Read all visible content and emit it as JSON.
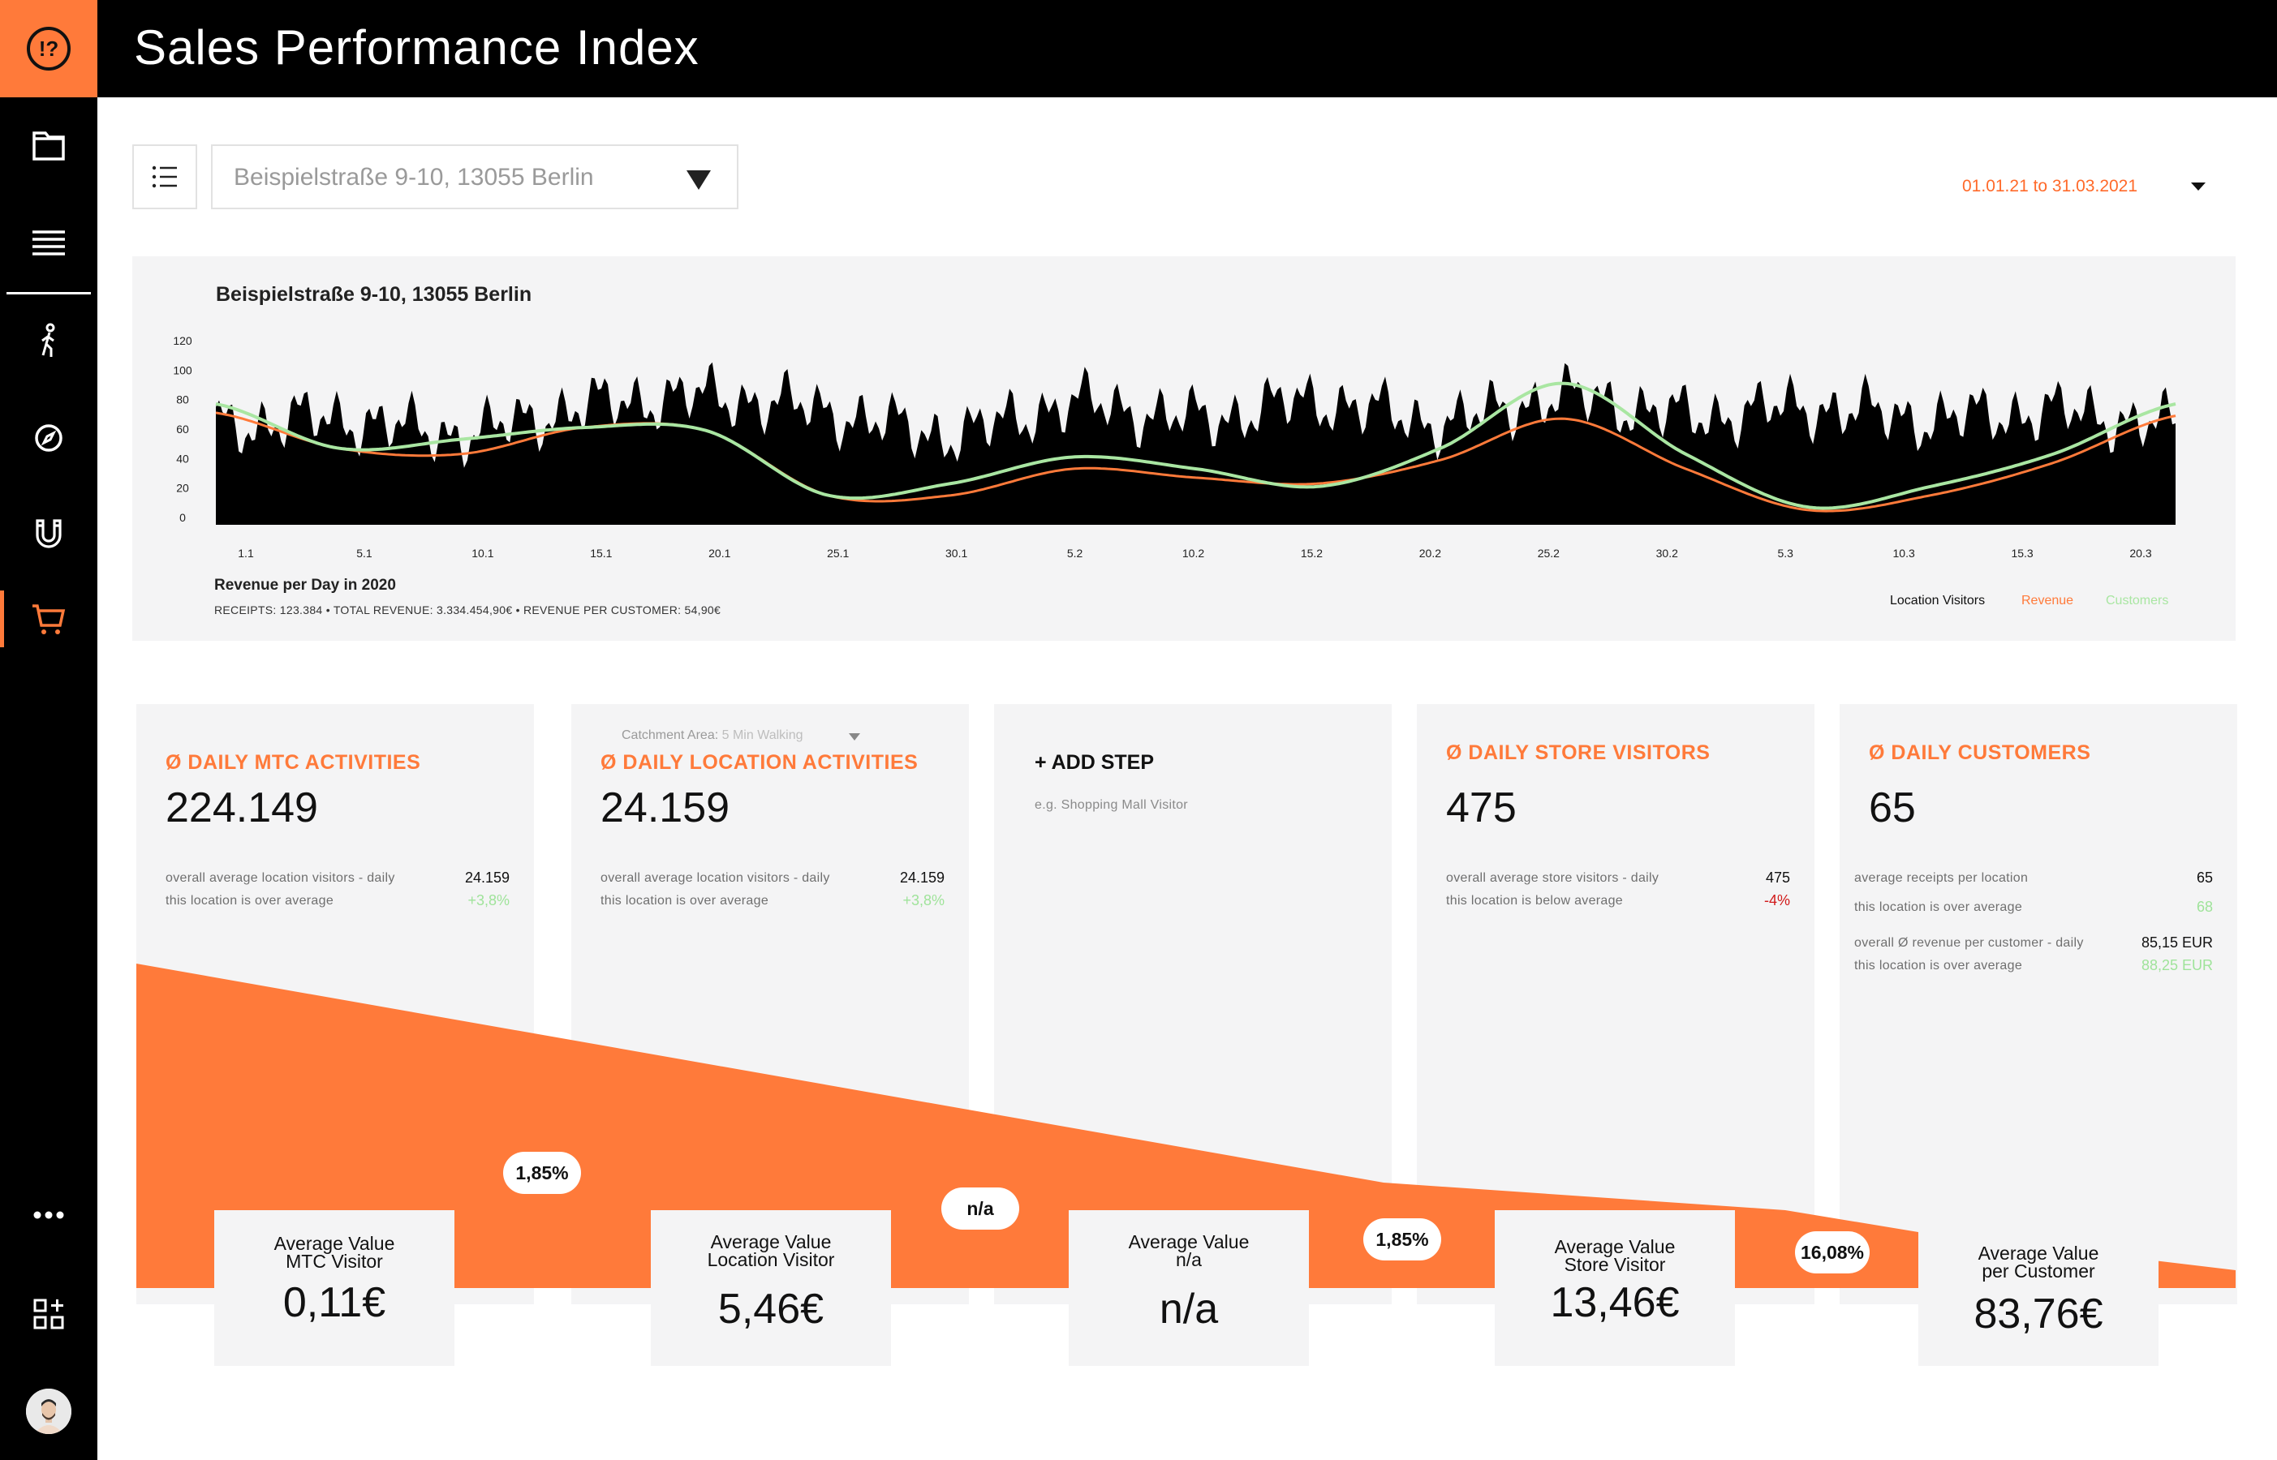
{
  "header": {
    "title": "Sales Performance Index",
    "logo_text": "!?"
  },
  "sidebar": {
    "items": [
      {
        "name": "folder",
        "icon": "folder-icon"
      },
      {
        "name": "list",
        "icon": "list-icon"
      },
      {
        "name": "walking",
        "icon": "walking-person-icon"
      },
      {
        "name": "compass",
        "icon": "compass-icon"
      },
      {
        "name": "magnet",
        "icon": "magnet-icon"
      },
      {
        "name": "cart",
        "icon": "cart-icon",
        "active": true
      },
      {
        "name": "more",
        "icon": "more-icon"
      },
      {
        "name": "add-widget",
        "icon": "add-widget-icon"
      }
    ]
  },
  "filters": {
    "location": "Beispielstraße 9-10, 13055 Berlin",
    "date_range": "01.01.21 to 31.03.2021"
  },
  "chart": {
    "title": "Beispielstraße 9-10, 13055 Berlin",
    "subtitle": "Revenue per Day in 2020",
    "stats": "RECEIPTS: 123.384 • TOTAL REVENUE: 3.334.454,90€ • REVENUE PER CUSTOMER: 54,90€",
    "legend": {
      "visitors": "Location Visitors",
      "revenue": "Revenue",
      "customers": "Customers"
    }
  },
  "chart_data": {
    "type": "area",
    "title": "Beispielstraße 9-10, 13055 Berlin",
    "xlabel": "",
    "ylabel": "",
    "ylim": [
      0,
      120
    ],
    "yticks": [
      "0",
      "20",
      "40",
      "60",
      "80",
      "100",
      "120"
    ],
    "x": [
      "1.1",
      "5.1",
      "10.1",
      "15.1",
      "20.1",
      "25.1",
      "30.1",
      "5.2",
      "10.2",
      "15.2",
      "20.2",
      "25.2",
      "30.2",
      "5.3",
      "10.3",
      "15.3",
      "20.3"
    ],
    "series": [
      {
        "name": "Location Visitors",
        "color": "#000000",
        "values": [
          75,
          80,
          70,
          88,
          95,
          85,
          70,
          90,
          80,
          92,
          78,
          95,
          82,
          88,
          80,
          85,
          75
        ]
      },
      {
        "name": "Revenue",
        "color": "#ff7a3a",
        "values": [
          76,
          52,
          48,
          66,
          64,
          20,
          20,
          38,
          32,
          28,
          44,
          72,
          38,
          10,
          20,
          42,
          74
        ]
      },
      {
        "name": "Customers",
        "color": "#a9e6a2",
        "values": [
          82,
          52,
          58,
          66,
          64,
          20,
          28,
          46,
          38,
          26,
          52,
          96,
          48,
          12,
          26,
          48,
          82
        ]
      }
    ]
  },
  "kpis": {
    "mtc": {
      "title": "Ø DAILY MTC ACTIVITIES",
      "value": "224.149",
      "line1": "overall average location visitors - daily",
      "line1_value": "24.159",
      "line2": "this location is over average",
      "line2_value": "+3,8%"
    },
    "location": {
      "catchment_label": "Catchment Area:",
      "catchment_value": "5 Min Walking",
      "title": "Ø DAILY LOCATION ACTIVITIES",
      "value": "24.159",
      "line1": "overall average location visitors - daily",
      "line1_value": "24.159",
      "line2": "this location is over average",
      "line2_value": "+3,8%"
    },
    "step": {
      "title": "+ ADD STEP",
      "hint": "e.g. Shopping Mall Visitor"
    },
    "store": {
      "title": "Ø DAILY STORE VISITORS",
      "value": "475",
      "line1": "overall average store visitors - daily",
      "line1_value": "475",
      "line2": "this location is below average",
      "line2_value": "-4%"
    },
    "customers": {
      "title": "Ø DAILY CUSTOMERS",
      "value": "65",
      "line1": "average receipts per location",
      "line1_value": "65",
      "line2": "this location is over average",
      "line2_value": "68",
      "line3": "overall Ø revenue per customer - daily",
      "line3_value": "85,15 EUR",
      "line4": "this location is over average",
      "line4_value": "88,25 EUR"
    }
  },
  "funnel": {
    "conversions": [
      "1,85%",
      "n/a",
      "1,85%",
      "16,08%"
    ],
    "values": [
      {
        "label1": "Average Value",
        "label2": "MTC Visitor",
        "value": "0,11€"
      },
      {
        "label1": "Average Value",
        "label2": "Location Visitor",
        "value": "5,46€"
      },
      {
        "label1": "Average Value",
        "label2": "n/a",
        "value": "n/a"
      },
      {
        "label1": "Average Value",
        "label2": "Store Visitor",
        "value": "13,46€"
      },
      {
        "label1": "Average Value",
        "label2": "per Customer",
        "value": "83,76€"
      }
    ]
  },
  "colors": {
    "accent": "#ff7a3a",
    "positive": "#9fe39a",
    "negative": "#d11a1a",
    "customers": "#a9e6a2"
  }
}
